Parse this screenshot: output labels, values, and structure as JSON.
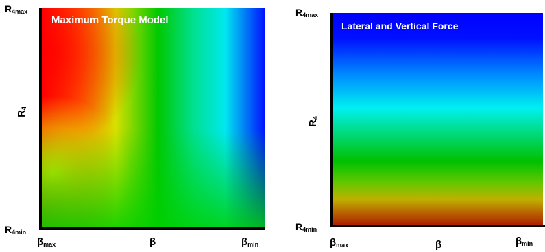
{
  "left_panel": {
    "title": "Maximum Torque Model",
    "y_axis": {
      "label": "R",
      "label_sub": "4",
      "top_main": "R",
      "top_sub": "4max",
      "bottom_main": "R",
      "bottom_sub": "4min"
    },
    "x_axis": {
      "label": "β",
      "left_main": "β",
      "left_sub": "max",
      "right_main": "β",
      "right_sub": "min"
    }
  },
  "right_panel": {
    "title": "Lateral and Vertical Force",
    "y_axis": {
      "label": "R",
      "label_sub": "4",
      "top_main": "R",
      "top_sub": "4max",
      "bottom_main": "R",
      "bottom_sub": "4min"
    },
    "x_axis": {
      "label": "β",
      "left_main": "β",
      "left_sub": "max",
      "right_main": "β",
      "right_sub": "min"
    }
  },
  "colors": {
    "red": "#ff0000",
    "orange": "#ff8a00",
    "yellow": "#e8f000",
    "green": "#00d000",
    "cyan": "#00f0f0",
    "blue": "#0000ff",
    "darkred": "#a00000"
  }
}
